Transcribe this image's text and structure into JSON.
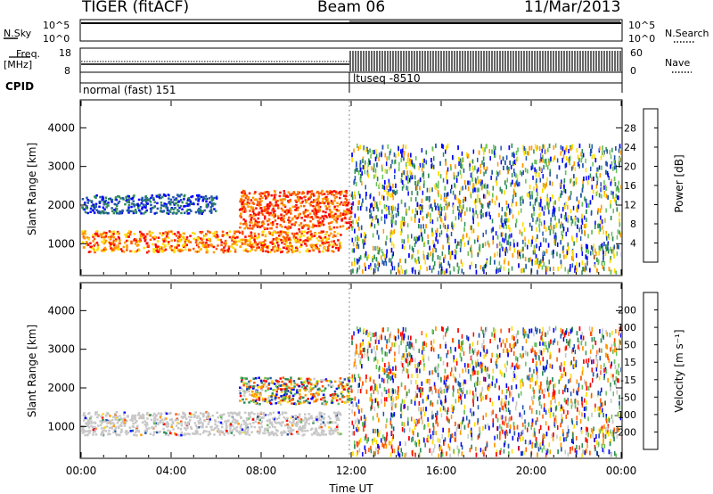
{
  "header": {
    "title": "TIGER (fitACF)",
    "beam": "Beam 06",
    "date": "11/Mar/2013"
  },
  "panels": {
    "nsky_label": "N.Sky",
    "nsearch_label": "N.Search",
    "nsky_ticks": [
      "10^5",
      "10^0"
    ],
    "nsearch_ticks": [
      "10^5",
      "10^0"
    ],
    "freq_label": "Freq.",
    "freq_unit": "[MHz]",
    "freq_ticks": [
      "18",
      "8"
    ],
    "nave_label": "Nave",
    "nave_ticks": [
      "60",
      "0"
    ],
    "cpid_label": "CPID",
    "cpid_segments": [
      {
        "name": "normal (fast) 151",
        "start_hour": 0,
        "end_hour": 12
      },
      {
        "name": "ltuseq -8510",
        "start_hour": 12,
        "end_hour": 24
      }
    ]
  },
  "chart_data": [
    {
      "type": "heatmap",
      "title": "",
      "xlabel": "",
      "ylabel": "Slant Range [km]",
      "x_ticks": [
        "00:00",
        "04:00",
        "08:00",
        "12:00",
        "16:00",
        "20:00",
        "00:00"
      ],
      "xlim_hours": [
        0,
        24
      ],
      "ylim": [
        200,
        4700
      ],
      "y_ticks": [
        1000,
        2000,
        3000,
        4000
      ],
      "colorbar": {
        "label": "Power [dB]",
        "ticks": [
          "28",
          "24",
          "20",
          "16",
          "12",
          "8",
          "4"
        ],
        "range": [
          0,
          30
        ],
        "colors": [
          "#0000ff",
          "#2255aa",
          "#2e8b57",
          "#66c05a",
          "#ffdd00",
          "#ff9900",
          "#ff5500",
          "#ff0000"
        ]
      },
      "regions": [
        {
          "start_hour": 0.0,
          "end_hour": 11.5,
          "range_km": [
            800,
            1350
          ],
          "value": "20 to 28 dB"
        },
        {
          "start_hour": 0.0,
          "end_hour": 6.0,
          "range_km": [
            1800,
            2300
          ],
          "value": "4 to 8 dB"
        },
        {
          "start_hour": 7.0,
          "end_hour": 12.0,
          "range_km": [
            1400,
            2400
          ],
          "value": "24 to 30 dB"
        },
        {
          "start_hour": 12.0,
          "end_hour": 24.0,
          "range_km": [
            300,
            3600
          ],
          "value": "4 to 20 dB"
        }
      ]
    },
    {
      "type": "heatmap",
      "title": "",
      "xlabel": "Time UT",
      "ylabel": "Slant Range [km]",
      "x_ticks": [
        "00:00",
        "04:00",
        "08:00",
        "12:00",
        "16:00",
        "20:00",
        "00:00"
      ],
      "xlim_hours": [
        0,
        24
      ],
      "ylim": [
        200,
        4700
      ],
      "y_ticks": [
        1000,
        2000,
        3000,
        4000
      ],
      "colorbar": {
        "label": "Velocity [m s⁻¹]",
        "ticks": [
          "200",
          "100",
          "50",
          "15",
          "-15",
          "-50",
          "-100",
          "-200"
        ],
        "range": [
          -250,
          250
        ],
        "colors": [
          "#ff0000",
          "#ff5500",
          "#ff9900",
          "#ffdd00",
          "#c8c8c8",
          "#66c05a",
          "#2e8b57",
          "#2255aa",
          "#0000ff"
        ]
      },
      "regions": [
        {
          "start_hour": 0.0,
          "end_hour": 11.5,
          "range_km": [
            800,
            1400
          ],
          "value": "-15 to 15 m/s"
        },
        {
          "start_hour": 7.0,
          "end_hour": 12.0,
          "range_km": [
            1600,
            2300
          ],
          "value": "-100 to 100 m/s"
        },
        {
          "start_hour": 12.0,
          "end_hour": 24.0,
          "range_km": [
            300,
            3600
          ],
          "value": "-200 to 200 m/s"
        }
      ]
    }
  ]
}
